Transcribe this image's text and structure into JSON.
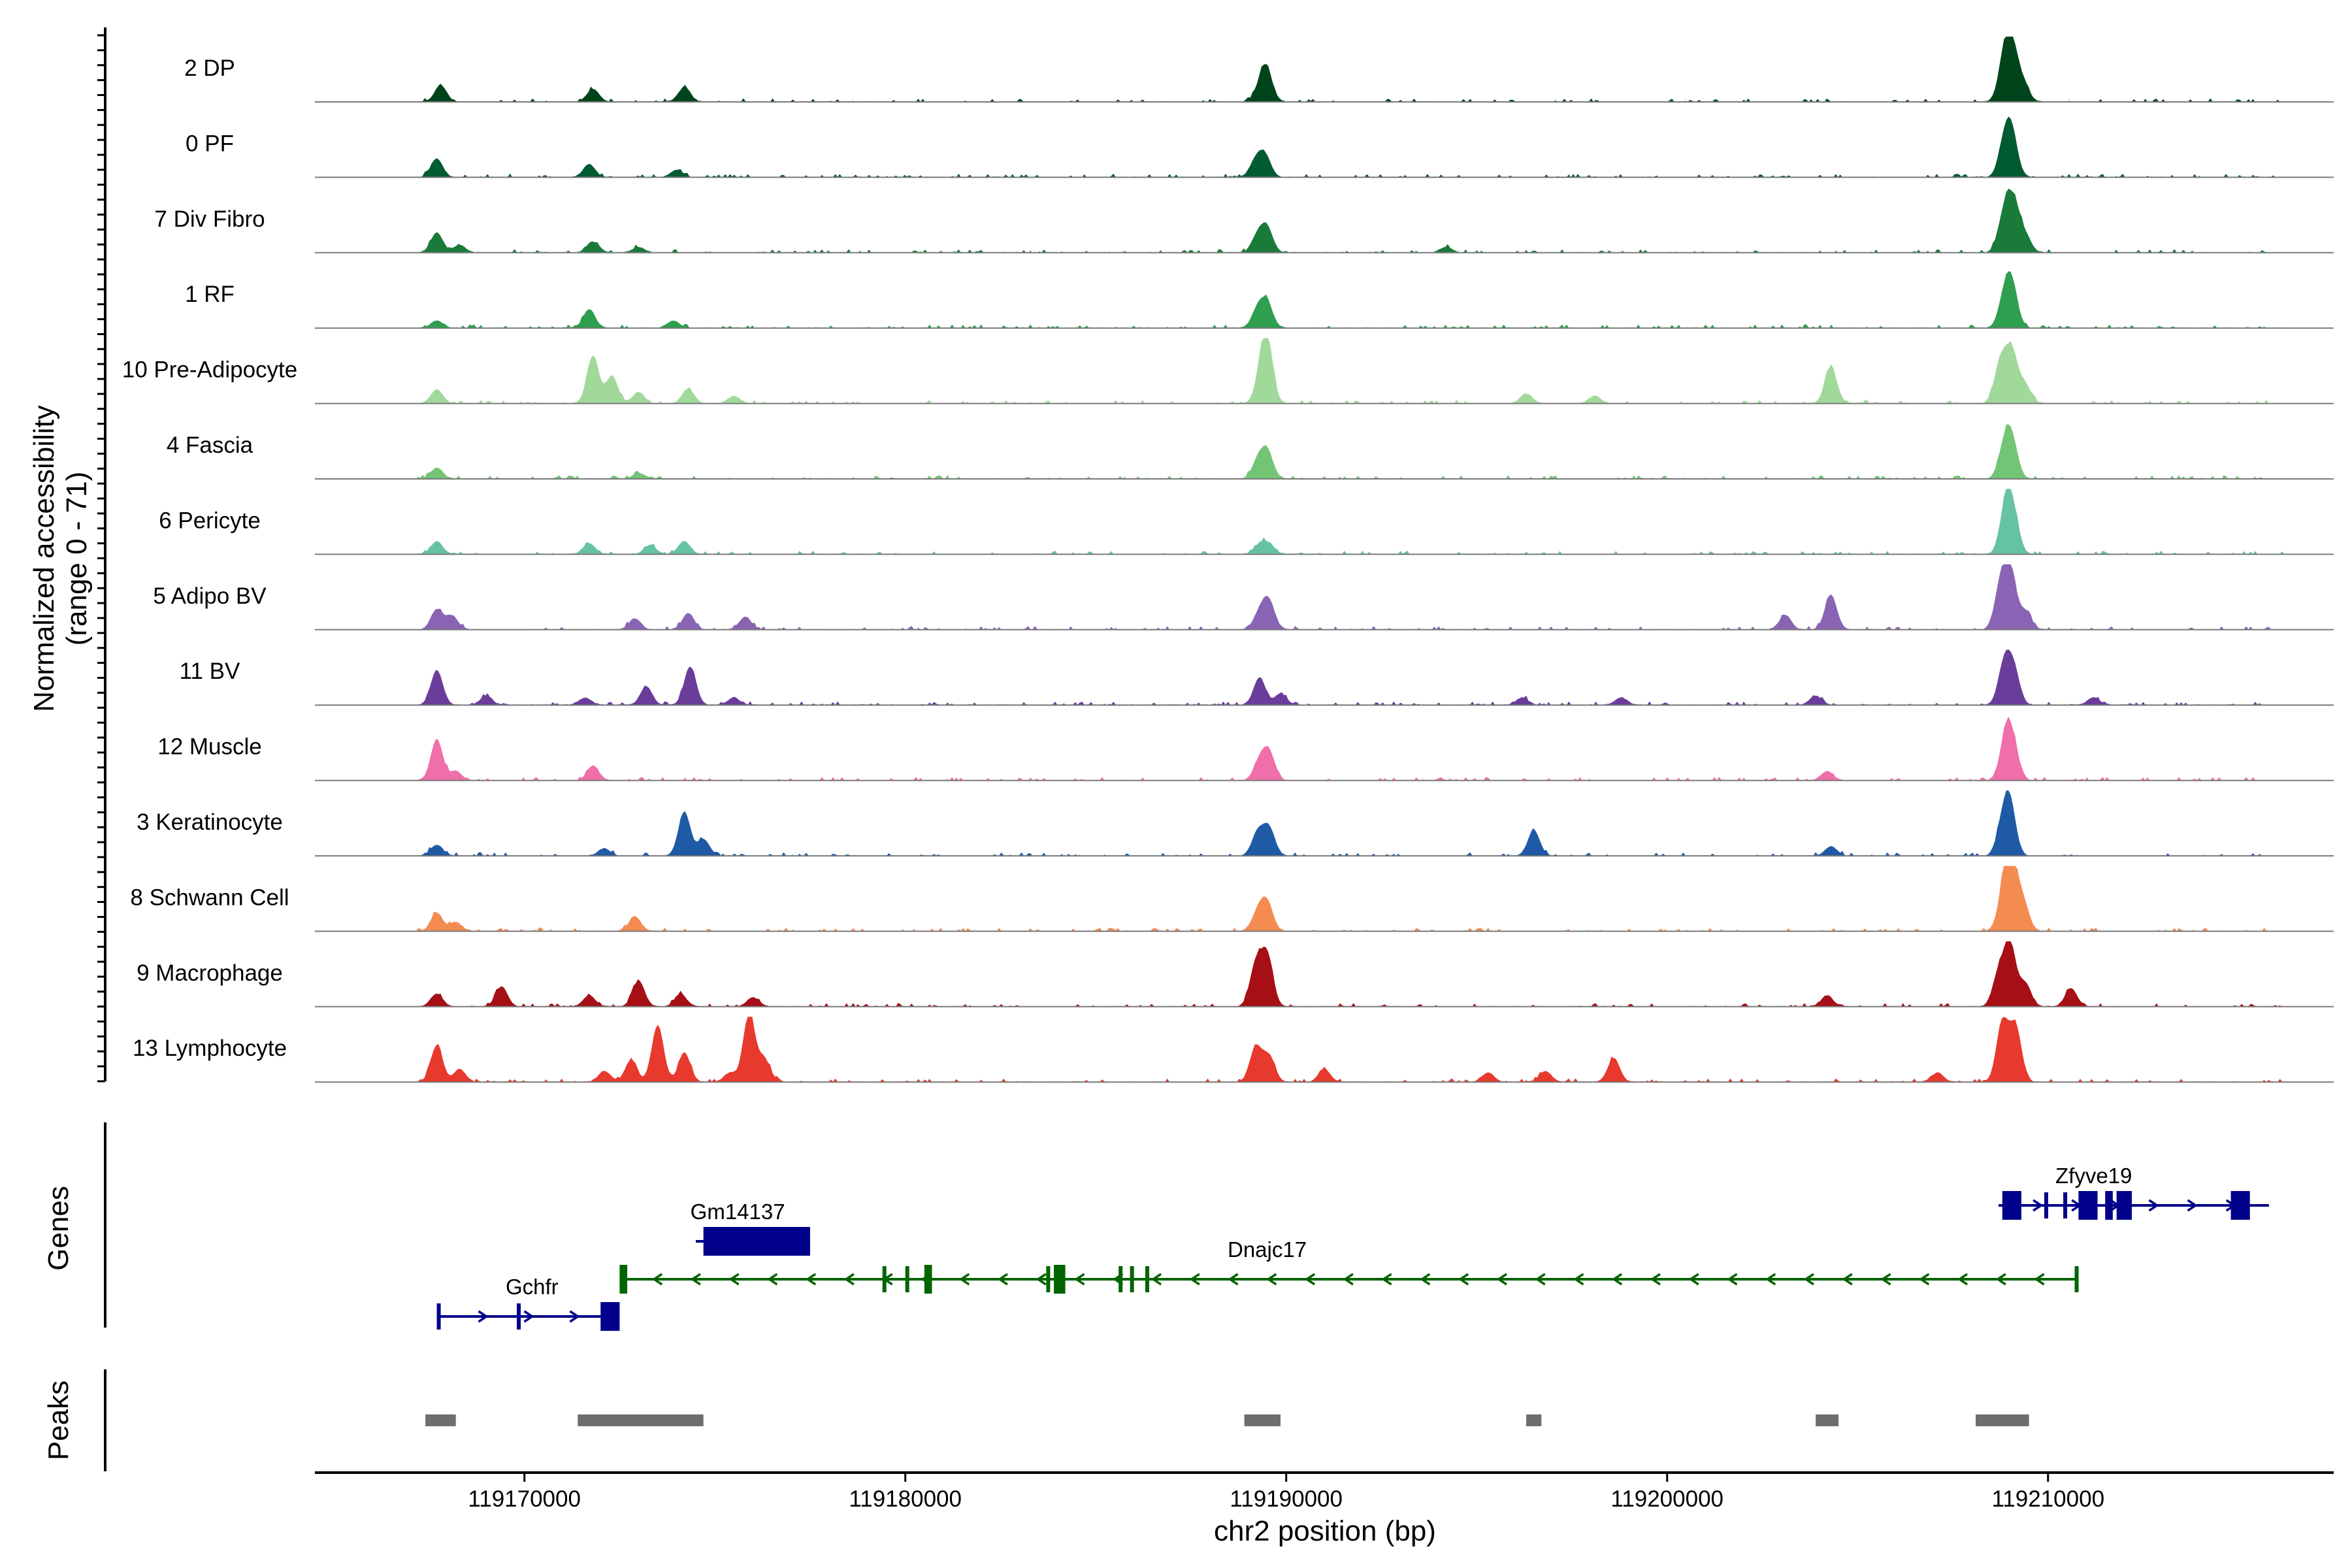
{
  "chart_data": {
    "type": "area",
    "ylabel": [
      "Normalized accessibility",
      "(range 0 - 71)"
    ],
    "xlabel": "chr2 position (bp)",
    "xlim": [
      119164500,
      119217500
    ],
    "x_ticks": [
      119170000,
      119180000,
      119190000,
      119200000,
      119210000
    ],
    "x_tick_labels": [
      "119170000",
      "119180000",
      "119190000",
      "119200000",
      "119210000"
    ],
    "ymax": 71,
    "grid": false,
    "tracks": [
      {
        "name": "2 DP",
        "color": "#00441b",
        "peaks": [
          [
            119167800,
            18
          ],
          [
            119171800,
            14
          ],
          [
            119174200,
            16
          ],
          [
            119189350,
            18
          ],
          [
            119189500,
            28
          ],
          [
            119208850,
            45
          ],
          [
            119209050,
            55
          ],
          [
            119209350,
            20
          ]
        ]
      },
      {
        "name": "0 PF",
        "color": "#005a32",
        "peaks": [
          [
            119167700,
            20
          ],
          [
            119171700,
            14
          ],
          [
            119174000,
            8
          ],
          [
            119189200,
            18
          ],
          [
            119189450,
            22
          ],
          [
            119208850,
            35
          ],
          [
            119209050,
            45
          ]
        ]
      },
      {
        "name": "7 Div Fibro",
        "color": "#1a7a3a",
        "peaks": [
          [
            119167700,
            22
          ],
          [
            119168300,
            8
          ],
          [
            119171800,
            12
          ],
          [
            119173000,
            6
          ],
          [
            119189250,
            18
          ],
          [
            119189500,
            26
          ],
          [
            119194200,
            6
          ],
          [
            119208850,
            42
          ],
          [
            119209100,
            50
          ],
          [
            119209400,
            18
          ]
        ]
      },
      {
        "name": "1 RF",
        "color": "#2e9e4f",
        "peaks": [
          [
            119167700,
            8
          ],
          [
            119171700,
            20
          ],
          [
            119173900,
            8
          ],
          [
            119189250,
            20
          ],
          [
            119189500,
            26
          ],
          [
            119208850,
            30
          ],
          [
            119209050,
            45
          ]
        ]
      },
      {
        "name": "10 Pre-Adipocyte",
        "color": "#a1d99b",
        "peaks": [
          [
            119167700,
            15
          ],
          [
            119171800,
            52
          ],
          [
            119172300,
            30
          ],
          [
            119173000,
            12
          ],
          [
            119174300,
            16
          ],
          [
            119175500,
            8
          ],
          [
            119189350,
            28
          ],
          [
            119189500,
            62
          ],
          [
            119196300,
            10
          ],
          [
            119198100,
            8
          ],
          [
            119204300,
            40
          ],
          [
            119208750,
            45
          ],
          [
            119209050,
            55
          ],
          [
            119209400,
            20
          ]
        ]
      },
      {
        "name": "4 Fascia",
        "color": "#74c476",
        "peaks": [
          [
            119167700,
            12
          ],
          [
            119173000,
            6
          ],
          [
            119189250,
            18
          ],
          [
            119189500,
            30
          ],
          [
            119208850,
            32
          ],
          [
            119209050,
            40
          ]
        ]
      },
      {
        "name": "6 Pericyte",
        "color": "#66c2a4",
        "peaks": [
          [
            119167700,
            14
          ],
          [
            119171700,
            12
          ],
          [
            119173300,
            10
          ],
          [
            119174200,
            14
          ],
          [
            119189300,
            10
          ],
          [
            119189550,
            10
          ],
          [
            119208900,
            55
          ],
          [
            119209100,
            35
          ]
        ]
      },
      {
        "name": "5 Adipo BV",
        "color": "#8a64b4",
        "peaks": [
          [
            119167700,
            22
          ],
          [
            119168100,
            15
          ],
          [
            119172900,
            12
          ],
          [
            119174300,
            18
          ],
          [
            119175800,
            14
          ],
          [
            119189300,
            18
          ],
          [
            119189550,
            30
          ],
          [
            119203100,
            16
          ],
          [
            119204300,
            38
          ],
          [
            119208750,
            45
          ],
          [
            119209000,
            65
          ],
          [
            119209400,
            20
          ]
        ]
      },
      {
        "name": "11 BV",
        "color": "#6a3d9a",
        "peaks": [
          [
            119167700,
            38
          ],
          [
            119169000,
            10
          ],
          [
            119171600,
            8
          ],
          [
            119173200,
            20
          ],
          [
            119174350,
            42
          ],
          [
            119175500,
            8
          ],
          [
            119189300,
            30
          ],
          [
            119189850,
            12
          ],
          [
            119196200,
            8
          ],
          [
            119198800,
            8
          ],
          [
            119203900,
            10
          ],
          [
            119208850,
            45
          ],
          [
            119209100,
            38
          ],
          [
            119211200,
            8
          ]
        ]
      },
      {
        "name": "12 Muscle",
        "color": "#f06eaa",
        "peaks": [
          [
            119167700,
            45
          ],
          [
            119168200,
            10
          ],
          [
            119171800,
            16
          ],
          [
            119189300,
            20
          ],
          [
            119189550,
            30
          ],
          [
            119204200,
            10
          ],
          [
            119208900,
            50
          ],
          [
            119209100,
            30
          ]
        ]
      },
      {
        "name": "3 Keratinocyte",
        "color": "#1f5aa6",
        "peaks": [
          [
            119167700,
            12
          ],
          [
            119172100,
            8
          ],
          [
            119174200,
            48
          ],
          [
            119174700,
            18
          ],
          [
            119189250,
            25
          ],
          [
            119189550,
            30
          ],
          [
            119196500,
            28
          ],
          [
            119204300,
            10
          ],
          [
            119208800,
            30
          ],
          [
            119209000,
            55
          ]
        ]
      },
      {
        "name": "8 Schwann Cell",
        "color": "#f48c52",
        "peaks": [
          [
            119167700,
            20
          ],
          [
            119168200,
            10
          ],
          [
            119172900,
            16
          ],
          [
            119189250,
            20
          ],
          [
            119189500,
            30
          ],
          [
            119208850,
            45
          ],
          [
            119209050,
            70
          ],
          [
            119209350,
            30
          ]
        ]
      },
      {
        "name": "9 Macrophage",
        "color": "#a50f15",
        "peaks": [
          [
            119167700,
            14
          ],
          [
            119169400,
            22
          ],
          [
            119171700,
            12
          ],
          [
            119173000,
            28
          ],
          [
            119174100,
            14
          ],
          [
            119176000,
            10
          ],
          [
            119189200,
            45
          ],
          [
            119189500,
            55
          ],
          [
            119204200,
            12
          ],
          [
            119208700,
            35
          ],
          [
            119209000,
            68
          ],
          [
            119209400,
            25
          ],
          [
            119210600,
            20
          ]
        ]
      },
      {
        "name": "13 Lymphocyte",
        "color": "#e8392e",
        "peaks": [
          [
            119167700,
            40
          ],
          [
            119168300,
            14
          ],
          [
            119172100,
            12
          ],
          [
            119172800,
            24
          ],
          [
            119173500,
            62
          ],
          [
            119174200,
            32
          ],
          [
            119175400,
            10
          ],
          [
            119175900,
            75
          ],
          [
            119176300,
            25
          ],
          [
            119189200,
            38
          ],
          [
            119189550,
            28
          ],
          [
            119191000,
            14
          ],
          [
            119195300,
            10
          ],
          [
            119196800,
            12
          ],
          [
            119198600,
            26
          ],
          [
            119207100,
            10
          ],
          [
            119208800,
            65
          ],
          [
            119209150,
            60
          ]
        ]
      }
    ],
    "genes": [
      {
        "name": "Gchfr",
        "strand": "+",
        "color": "#00008b",
        "start": 119167700,
        "end": 119172500,
        "row": 2,
        "exons": [
          [
            119167700,
            119167800
          ],
          [
            119169800,
            119169900
          ],
          [
            119172000,
            119172500
          ]
        ]
      },
      {
        "name": "Gm14137",
        "color": "#00008b",
        "strand": "+",
        "start": 119174500,
        "end": 119177500,
        "row": 0,
        "exons": [
          [
            119174700,
            119177500
          ]
        ]
      },
      {
        "name": "Dnajc17",
        "strand": "-",
        "color": "#006400",
        "start": 119172500,
        "end": 119210800,
        "row": 1,
        "exons": [
          [
            119172500,
            119172700
          ],
          [
            119179400,
            119179500
          ],
          [
            119180000,
            119180100
          ],
          [
            119180500,
            119180700
          ],
          [
            119183700,
            119183800
          ],
          [
            119183900,
            119184200
          ],
          [
            119185600,
            119185700
          ],
          [
            119185900,
            119186000
          ],
          [
            119186300,
            119186400
          ],
          [
            119210700,
            119210800
          ]
        ]
      },
      {
        "name": "Zfyve19",
        "strand": "+",
        "color": "#00008b",
        "start": 119208700,
        "end": 119215800,
        "row": -1,
        "exons": [
          [
            119208800,
            119209300
          ],
          [
            119209900,
            119210000
          ],
          [
            119210400,
            119210500
          ],
          [
            119210800,
            119211300
          ],
          [
            119211500,
            119211700
          ],
          [
            119211800,
            119212200
          ],
          [
            119214800,
            119215300
          ]
        ]
      }
    ],
    "peak_regions": [
      [
        119167400,
        119168200
      ],
      [
        119171400,
        119174700
      ],
      [
        119188900,
        119189850
      ],
      [
        119196300,
        119196700
      ],
      [
        119203900,
        119204500
      ],
      [
        119208100,
        119209500
      ]
    ],
    "track_axis_title": "Genes",
    "peaks_axis_title": "Peaks"
  }
}
